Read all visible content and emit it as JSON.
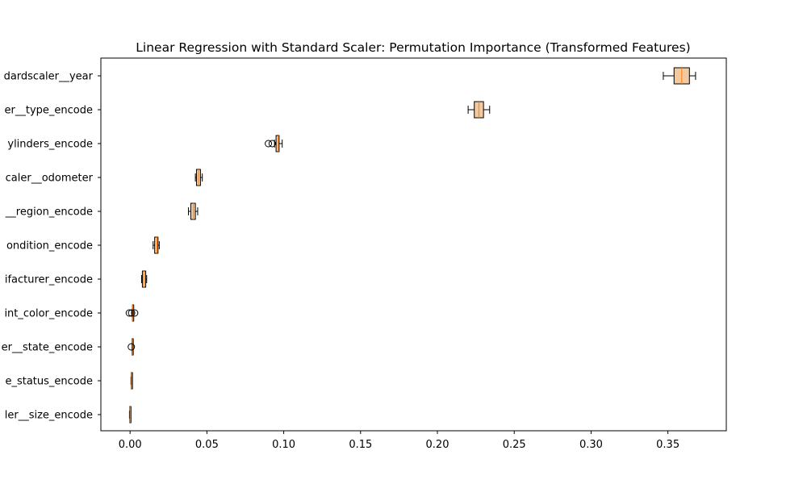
{
  "chart_data": {
    "type": "boxplot",
    "orientation": "horizontal",
    "title": "Linear Regression with Standard Scaler: Permutation Importance (Transformed Features)",
    "xlabel": "",
    "ylabel": "",
    "xlim": [
      -0.019,
      0.388
    ],
    "xticks": [
      0.0,
      0.05,
      0.1,
      0.15,
      0.2,
      0.25,
      0.3,
      0.35
    ],
    "xtick_labels": [
      "0.00",
      "0.05",
      "0.10",
      "0.15",
      "0.20",
      "0.25",
      "0.30",
      "0.35"
    ],
    "grid": false,
    "legend": false,
    "box_color": "#f3c9a0",
    "median_color": "#ff7f0e",
    "edge_color": "#000000",
    "categories": [
      "dardscaler__year",
      "er__type_encode",
      "ylinders_encode",
      "caler__odometer",
      "__region_encode",
      "ondition_encode",
      "ifacturer_encode",
      "int_color_encode",
      "er__state_encode",
      "e_status_encode",
      "ler__size_encode"
    ],
    "boxes": [
      {
        "whislo": 0.347,
        "q1": 0.354,
        "med": 0.359,
        "q3": 0.364,
        "whishi": 0.368,
        "fliers": []
      },
      {
        "whislo": 0.22,
        "q1": 0.224,
        "med": 0.227,
        "q3": 0.23,
        "whishi": 0.234,
        "fliers": []
      },
      {
        "whislo": 0.094,
        "q1": 0.095,
        "med": 0.0965,
        "q3": 0.097,
        "whishi": 0.099,
        "fliers": [
          0.09,
          0.0925
        ]
      },
      {
        "whislo": 0.0425,
        "q1": 0.0432,
        "med": 0.0445,
        "q3": 0.0458,
        "whishi": 0.047,
        "fliers": []
      },
      {
        "whislo": 0.038,
        "q1": 0.0395,
        "med": 0.0412,
        "q3": 0.0425,
        "whishi": 0.044,
        "fliers": []
      },
      {
        "whislo": 0.015,
        "q1": 0.016,
        "med": 0.0175,
        "q3": 0.0182,
        "whishi": 0.019,
        "fliers": []
      },
      {
        "whislo": 0.0075,
        "q1": 0.008,
        "med": 0.009,
        "q3": 0.0102,
        "whishi": 0.0108,
        "fliers": []
      },
      {
        "whislo": 0.0015,
        "q1": 0.0016,
        "med": 0.0018,
        "q3": 0.002,
        "whishi": 0.0022,
        "fliers": [
          -0.0005,
          0.001,
          0.003
        ]
      },
      {
        "whislo": 0.0012,
        "q1": 0.0013,
        "med": 0.0015,
        "q3": 0.0017,
        "whishi": 0.0019,
        "fliers": [
          0.0008
        ]
      },
      {
        "whislo": 0.0006,
        "q1": 0.0008,
        "med": 0.001,
        "q3": 0.0012,
        "whishi": 0.0014,
        "fliers": []
      },
      {
        "whislo": -0.0004,
        "q1": -0.0002,
        "med": 0.0,
        "q3": 0.0002,
        "whishi": 0.0004,
        "fliers": []
      }
    ]
  }
}
